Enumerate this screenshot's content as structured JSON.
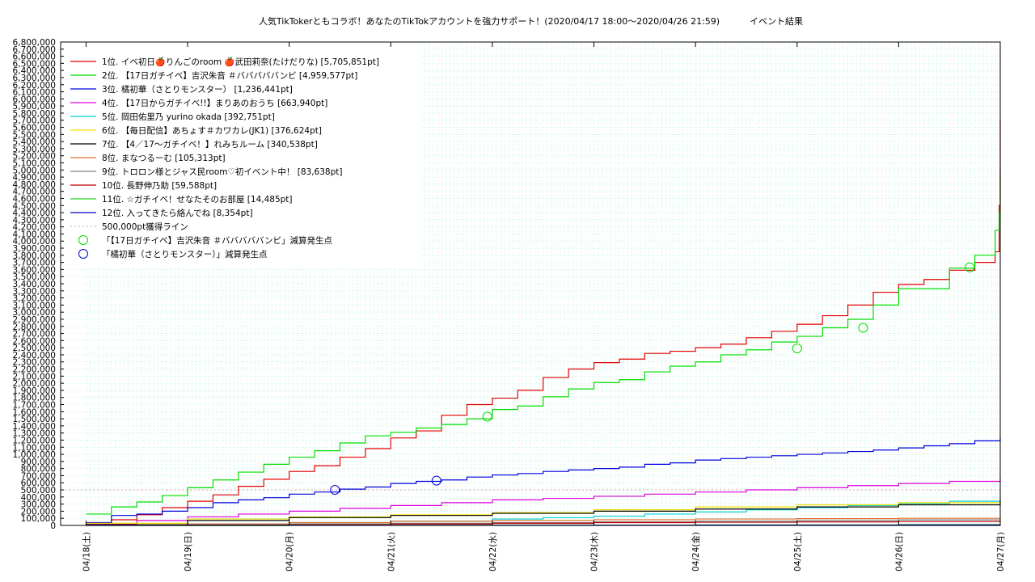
{
  "chart_data": {
    "type": "line",
    "title": "人気TikTokerともコラボ！あなたのTikTokアカウントを強力サポート！(2020/04/17 18:00～2020/04/26 21:59)",
    "subtitle": "イベント結果",
    "xlabel": "",
    "ylabel": "",
    "ylim": [
      0,
      6800000
    ],
    "y_tick_step": 100000,
    "x_tick_labels": [
      "04/18(土)",
      "04/19(日)",
      "04/20(月)",
      "04/21(火)",
      "04/22(水)",
      "04/23(木)",
      "04/24(金)",
      "04/25(土)",
      "04/26(日)",
      "04/27(月)"
    ],
    "x_range_days": [
      -0.25,
      9.0
    ],
    "grid": true,
    "legend_position": "top-left",
    "series": [
      {
        "name": "1位. イベ初日🍎りんごのroom 🍎武田莉奈(たけだりな) [5,705,851pt]",
        "color": "#e00000",
        "x": [
          0,
          0.25,
          0.5,
          0.75,
          1.0,
          1.25,
          1.5,
          1.75,
          2.0,
          2.25,
          2.5,
          2.75,
          3.0,
          3.25,
          3.5,
          3.75,
          4.0,
          4.25,
          4.5,
          4.75,
          5.0,
          5.25,
          5.5,
          5.75,
          6.0,
          6.25,
          6.5,
          6.75,
          7.0,
          7.25,
          7.5,
          7.75,
          8.0,
          8.25,
          8.5,
          8.75,
          8.95,
          8.99,
          9.0
        ],
        "y": [
          20000,
          80000,
          150000,
          250000,
          340000,
          430000,
          550000,
          650000,
          760000,
          840000,
          960000,
          1080000,
          1230000,
          1330000,
          1550000,
          1700000,
          1790000,
          1900000,
          2080000,
          2200000,
          2290000,
          2340000,
          2420000,
          2450000,
          2500000,
          2550000,
          2640000,
          2730000,
          2830000,
          2950000,
          3100000,
          3280000,
          3390000,
          3460000,
          3590000,
          3700000,
          3850000,
          4500000,
          5705851
        ]
      },
      {
        "name": "2位. 【17日ガチイベ】吉沢朱音 ＃バババババンビ [4,959,577pt]",
        "color": "#00dd00",
        "x": [
          0,
          0.25,
          0.5,
          0.75,
          1.0,
          1.25,
          1.5,
          1.75,
          2.0,
          2.25,
          2.5,
          2.75,
          3.0,
          3.25,
          3.5,
          3.75,
          4.0,
          4.25,
          4.5,
          4.75,
          5.0,
          5.25,
          5.5,
          5.75,
          6.0,
          6.25,
          6.5,
          6.75,
          7.0,
          7.25,
          7.5,
          7.75,
          8.0,
          8.25,
          8.5,
          8.75,
          8.95,
          8.99,
          9.0
        ],
        "y": [
          160000,
          260000,
          330000,
          420000,
          530000,
          640000,
          750000,
          860000,
          960000,
          1050000,
          1160000,
          1260000,
          1310000,
          1370000,
          1420000,
          1500000,
          1630000,
          1680000,
          1810000,
          1920000,
          2010000,
          2050000,
          2160000,
          2240000,
          2300000,
          2400000,
          2470000,
          2580000,
          2660000,
          2780000,
          2900000,
          3100000,
          3330000,
          3330000,
          3620000,
          3800000,
          4150000,
          4400000,
          4959577
        ]
      },
      {
        "name": "3位. 橘初華（さとりモンスター） [1,236,441pt]",
        "color": "#0000dd",
        "x": [
          0,
          0.25,
          0.5,
          0.75,
          1.0,
          1.25,
          1.5,
          1.75,
          2.0,
          2.25,
          2.5,
          2.75,
          3.0,
          3.25,
          3.5,
          3.75,
          4.0,
          4.25,
          4.5,
          4.75,
          5.0,
          5.25,
          5.5,
          5.75,
          6.0,
          6.25,
          6.5,
          6.75,
          7.0,
          7.25,
          7.5,
          7.75,
          8.0,
          8.25,
          8.5,
          8.75,
          9.0
        ],
        "y": [
          40000,
          140000,
          160000,
          200000,
          250000,
          320000,
          360000,
          390000,
          440000,
          470000,
          510000,
          540000,
          590000,
          620000,
          640000,
          680000,
          710000,
          730000,
          760000,
          780000,
          800000,
          820000,
          860000,
          880000,
          920000,
          940000,
          960000,
          980000,
          1000000,
          1020000,
          1040000,
          1060000,
          1090000,
          1120000,
          1150000,
          1190000,
          1236441
        ]
      },
      {
        "name": "4位. 【17日からガチイベ!!】まりあのおうち [663,940pt]",
        "color": "#dd00dd",
        "x": [
          0,
          0.5,
          1.0,
          1.5,
          2.0,
          2.5,
          3.0,
          3.5,
          4.0,
          4.5,
          5.0,
          5.5,
          6.0,
          6.5,
          7.0,
          7.5,
          8.0,
          8.5,
          9.0
        ],
        "y": [
          20000,
          70000,
          120000,
          160000,
          200000,
          240000,
          280000,
          320000,
          360000,
          380000,
          410000,
          440000,
          470000,
          500000,
          530000,
          560000,
          590000,
          620000,
          663940
        ]
      },
      {
        "name": "5位. 岡田佑里乃 yurino okada [392,751pt]",
        "color": "#00d0d0",
        "x": [
          0,
          1.0,
          2.0,
          3.0,
          4.0,
          4.5,
          5.0,
          5.5,
          6.0,
          6.5,
          7.0,
          7.5,
          8.0,
          8.5,
          9.0
        ],
        "y": [
          5000,
          20000,
          40000,
          60000,
          90000,
          110000,
          130000,
          160000,
          190000,
          220000,
          250000,
          280000,
          310000,
          340000,
          392751
        ]
      },
      {
        "name": "6位. 【毎日配信】あちょす＃カワカレ(JK1) [376,624pt]",
        "color": "#f0e000",
        "x": [
          0,
          1.0,
          2.0,
          3.0,
          4.0,
          5.0,
          6.0,
          7.0,
          8.0,
          9.0
        ],
        "y": [
          30000,
          90000,
          120000,
          150000,
          180000,
          220000,
          260000,
          290000,
          320000,
          376624
        ]
      },
      {
        "name": "7位. 【4／17～ガチイベ！】れみちルーム [340,538pt]",
        "color": "#000000",
        "x": [
          0,
          1.0,
          2.0,
          3.0,
          4.0,
          5.0,
          6.0,
          7.0,
          8.0,
          9.0
        ],
        "y": [
          10000,
          70000,
          110000,
          140000,
          170000,
          200000,
          230000,
          260000,
          290000,
          340538
        ]
      },
      {
        "name": "8位. まなつるーむ [105,313pt]",
        "color": "#e07030",
        "x": [
          0,
          1.0,
          2.0,
          3.0,
          4.0,
          5.0,
          6.0,
          7.0,
          8.0,
          9.0
        ],
        "y": [
          5000,
          20000,
          40000,
          60000,
          70000,
          80000,
          90000,
          95000,
          100000,
          105313
        ]
      },
      {
        "name": "9位. トロロン様とジャス民room♡初イベント中！ [83,638pt]",
        "color": "#808080",
        "x": [
          0,
          1.0,
          2.0,
          3.0,
          4.0,
          5.0,
          6.0,
          7.0,
          8.0,
          9.0
        ],
        "y": [
          2000,
          10000,
          20000,
          30000,
          40000,
          50000,
          60000,
          70000,
          78000,
          83638
        ]
      },
      {
        "name": "10位. 長野伸乃助 [59,588pt]",
        "color": "#c00000",
        "x": [
          0,
          1.0,
          2.0,
          3.0,
          4.0,
          5.0,
          6.0,
          7.0,
          8.0,
          9.0
        ],
        "y": [
          1000,
          5000,
          10000,
          20000,
          30000,
          40000,
          45000,
          50000,
          55000,
          59588
        ]
      },
      {
        "name": "11位. ☆ガチイベ！せなたそのお部屋 [14,485pt]",
        "color": "#20d020",
        "x": [
          0,
          2.0,
          4.0,
          6.0,
          8.0,
          9.0
        ],
        "y": [
          0,
          2000,
          5000,
          8000,
          12000,
          14485
        ]
      },
      {
        "name": "12位. 入ってきたら絡んでね [8,354pt]",
        "color": "#0000c0",
        "x": [
          0,
          2.0,
          4.0,
          6.0,
          8.0,
          9.0
        ],
        "y": [
          0,
          1000,
          3000,
          5000,
          7000,
          8354
        ]
      }
    ],
    "threshold_line": {
      "name": "500,000pt獲得ライン",
      "value": 500000,
      "color": "#e0a0a0"
    },
    "markers": [
      {
        "name": "「【17日ガチイベ】吉沢朱音 ＃バババババンビ」減算発生点",
        "color": "#00dd00",
        "points": [
          [
            3.95,
            1530000
          ],
          [
            7.0,
            2490000
          ],
          [
            7.65,
            2780000
          ],
          [
            8.7,
            3630000
          ]
        ]
      },
      {
        "name": "「橘初華（さとりモンスター）」減算発生点",
        "color": "#0000dd",
        "points": [
          [
            2.45,
            500000
          ],
          [
            3.45,
            630000
          ]
        ]
      }
    ]
  }
}
